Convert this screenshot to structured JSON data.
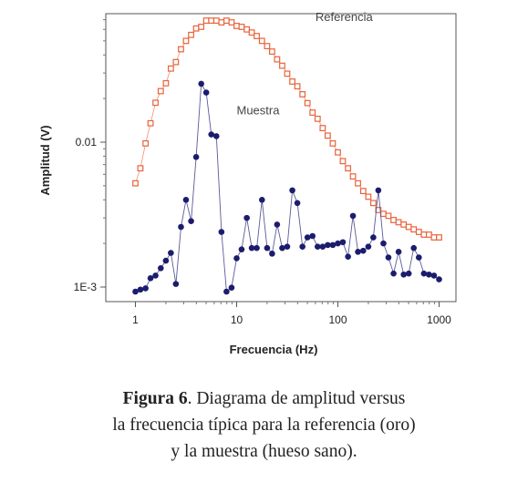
{
  "chart_data": {
    "type": "scatter",
    "xlabel": "Frecuencia (Hz)",
    "ylabel": "Amplitud (V)",
    "x_scale": "log",
    "y_scale": "log",
    "xlim": [
      0.75,
      1500
    ],
    "ylim": [
      0.00088,
      0.1
    ],
    "x_ticks": [
      {
        "value": 1,
        "label": "1"
      },
      {
        "value": 10,
        "label": "10"
      },
      {
        "value": 100,
        "label": "100"
      },
      {
        "value": 1000,
        "label": "1000"
      }
    ],
    "y_ticks": [
      {
        "value": 0.01,
        "label": "0.01"
      },
      {
        "value": 0.001,
        "label": "1E-3"
      }
    ],
    "grid": false,
    "series": [
      {
        "name": "Referencia",
        "color": "#e8633b",
        "marker": "open-square",
        "x": [
          1,
          1.12,
          1.26,
          1.41,
          1.58,
          1.78,
          2,
          2.24,
          2.51,
          2.82,
          3.16,
          3.55,
          3.98,
          4.47,
          5.01,
          5.62,
          6.31,
          7.08,
          7.94,
          8.91,
          10,
          11.2,
          12.6,
          14.1,
          15.8,
          17.8,
          20,
          22.4,
          25.1,
          28.2,
          31.6,
          35.5,
          39.8,
          44.7,
          50.1,
          56.2,
          63.1,
          70.8,
          79.4,
          89.1,
          100,
          112,
          126,
          141,
          158,
          178,
          200,
          224,
          251,
          282,
          316,
          355,
          398,
          447,
          501,
          562,
          631,
          708,
          794,
          891,
          1000
        ],
        "y": [
          0.0052,
          0.0066,
          0.0098,
          0.0135,
          0.0187,
          0.0225,
          0.0255,
          0.0322,
          0.0357,
          0.0438,
          0.05,
          0.055,
          0.0609,
          0.0625,
          0.069,
          0.069,
          0.069,
          0.0671,
          0.069,
          0.0671,
          0.0634,
          0.0625,
          0.06,
          0.0571,
          0.054,
          0.05,
          0.046,
          0.0422,
          0.0373,
          0.0337,
          0.0297,
          0.0262,
          0.0243,
          0.0214,
          0.0186,
          0.016,
          0.0145,
          0.0125,
          0.0111,
          0.0098,
          0.0085,
          0.0074,
          0.0066,
          0.0058,
          0.0052,
          0.0046,
          0.0042,
          0.0038,
          0.0034,
          0.0032,
          0.0031,
          0.0029,
          0.0028,
          0.0027,
          0.0026,
          0.0025,
          0.0024,
          0.0023,
          0.0023,
          0.0022,
          0.0022
        ]
      },
      {
        "name": "Muestra",
        "color": "#1c1c6e",
        "marker": "filled-circle",
        "x": [
          1,
          1.12,
          1.26,
          1.41,
          1.58,
          1.78,
          2,
          2.24,
          2.51,
          2.82,
          3.16,
          3.55,
          3.98,
          4.47,
          5.01,
          5.62,
          6.31,
          7.08,
          7.94,
          8.91,
          10,
          11.2,
          12.6,
          14.1,
          15.8,
          17.8,
          20,
          22.4,
          25.1,
          28.2,
          31.6,
          35.5,
          39.8,
          44.7,
          50.1,
          56.2,
          63.1,
          70.8,
          79.4,
          89.1,
          100,
          112,
          126,
          141,
          158,
          178,
          200,
          224,
          251,
          282,
          316,
          355,
          398,
          447,
          501,
          562,
          631,
          708,
          794,
          891,
          1000
        ],
        "y": [
          0.00093,
          0.00096,
          0.00098,
          0.00115,
          0.0012,
          0.00135,
          0.00152,
          0.00172,
          0.00105,
          0.0026,
          0.004,
          0.00285,
          0.0079,
          0.0253,
          0.022,
          0.0113,
          0.011,
          0.0024,
          0.00093,
          0.00099,
          0.00158,
          0.00182,
          0.003,
          0.00186,
          0.00186,
          0.004,
          0.00186,
          0.0017,
          0.0027,
          0.00186,
          0.0019,
          0.00465,
          0.0038,
          0.0019,
          0.0022,
          0.00225,
          0.0019,
          0.0019,
          0.00195,
          0.00195,
          0.002,
          0.00204,
          0.00162,
          0.0031,
          0.00175,
          0.00178,
          0.0019,
          0.0022,
          0.00465,
          0.002,
          0.0016,
          0.00124,
          0.00175,
          0.00122,
          0.00124,
          0.00186,
          0.0016,
          0.00124,
          0.00122,
          0.0012,
          0.00113
        ]
      }
    ],
    "annotations": [
      {
        "text": "Referencia",
        "x": 60,
        "y": 0.0685
      },
      {
        "text": "Muestra",
        "x": 10,
        "y": 0.0155
      }
    ]
  },
  "caption": {
    "label": "Figura 6",
    "line1": ". Diagrama de amplitud versus",
    "line2": "la frecuencia típica para la referencia (oro)",
    "line3": "y la muestra (hueso sano)."
  }
}
